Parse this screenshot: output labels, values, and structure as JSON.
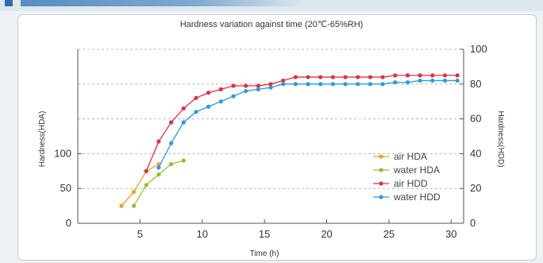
{
  "chart_data": {
    "type": "line",
    "title": "Hardness variation against time (20℃-65%RH)",
    "xlabel": "Time (h)",
    "ylabel_left": "Hardness(HDA)",
    "ylabel_right": "Hardness(HDD)",
    "xlim": [
      0,
      31
    ],
    "xticks": [
      5,
      10,
      15,
      20,
      25,
      30
    ],
    "ylim_left": [
      0,
      250
    ],
    "yticks_left": [
      0,
      50,
      100
    ],
    "ylim_right": [
      0,
      100
    ],
    "yticks_right": [
      0,
      20,
      40,
      60,
      80,
      100
    ],
    "grid": "dashed horizontal",
    "legend_position": "right",
    "series": [
      {
        "name": "air HDA",
        "axis": "left",
        "color": "#f0a020",
        "x": [
          3.5,
          4.5,
          5.5,
          6.5
        ],
        "y": [
          25,
          45,
          75,
          85
        ]
      },
      {
        "name": "water HDA",
        "axis": "left",
        "color": "#98bf2a",
        "x": [
          4.5,
          5.5,
          6.5,
          7.5,
          8.5
        ],
        "y": [
          25,
          55,
          70,
          85,
          90
        ]
      },
      {
        "name": "air HDD",
        "axis": "right",
        "color": "#e03040",
        "x": [
          5.5,
          6.5,
          7.5,
          8.5,
          9.5,
          10.5,
          11.5,
          12.5,
          13.5,
          14.5,
          15.5,
          16.5,
          17.5,
          18.5,
          19.5,
          20.5,
          21.5,
          22.5,
          23.5,
          24.5,
          25.5,
          26.5,
          27.5,
          28.5,
          29.5,
          30.5
        ],
        "y": [
          30,
          47,
          58,
          66,
          72,
          75,
          77,
          79,
          79,
          79,
          80,
          82,
          84,
          84,
          84,
          84,
          84,
          84,
          84,
          84,
          85,
          85,
          85,
          85,
          85,
          85
        ]
      },
      {
        "name": "water HDD",
        "axis": "right",
        "color": "#2a9ae0",
        "x": [
          6.5,
          7.5,
          8.5,
          9.5,
          10.5,
          11.5,
          12.5,
          13.5,
          14.5,
          15.5,
          16.5,
          17.5,
          18.5,
          19.5,
          20.5,
          21.5,
          22.5,
          23.5,
          24.5,
          25.5,
          26.5,
          27.5,
          28.5,
          29.5,
          30.5
        ],
        "y": [
          32,
          46,
          58,
          64,
          67,
          70,
          73,
          76,
          77,
          78,
          80,
          80,
          80,
          80,
          80,
          80,
          80,
          80,
          80,
          81,
          81,
          82,
          82,
          82,
          82
        ]
      }
    ]
  }
}
